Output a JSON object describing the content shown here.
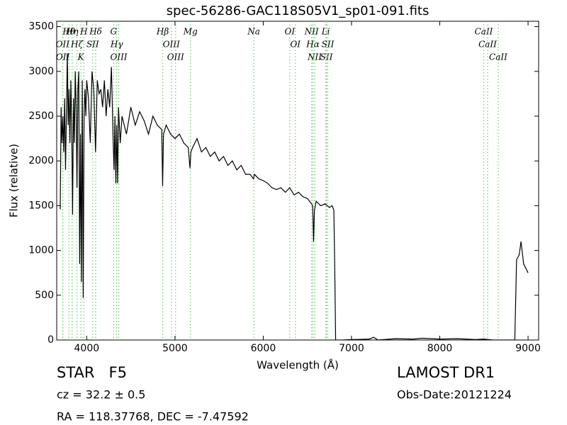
{
  "chart_data": {
    "type": "line",
    "title": "spec-56286-GAC118S05V1_sp01-091.fits",
    "x_label": "Wavelength (Å)",
    "y_label": "Flux (relative)",
    "color": "#000000",
    "line_color": "#66cc66",
    "xlim": [
      3660,
      9120
    ],
    "ylim": [
      0,
      3560
    ],
    "xticks": [
      4000,
      5000,
      6000,
      7000,
      8000,
      9000
    ],
    "yticks": [
      0,
      500,
      1000,
      1500,
      2000,
      2500,
      3000,
      3500
    ],
    "x": [
      3700,
      3710,
      3720,
      3730,
      3740,
      3750,
      3760,
      3770,
      3780,
      3790,
      3800,
      3810,
      3820,
      3830,
      3840,
      3850,
      3860,
      3870,
      3880,
      3890,
      3900,
      3910,
      3920,
      3930,
      3940,
      3950,
      3960,
      3970,
      3980,
      3990,
      4000,
      4020,
      4040,
      4060,
      4080,
      4100,
      4120,
      4140,
      4160,
      4180,
      4200,
      4220,
      4240,
      4260,
      4280,
      4300,
      4310,
      4320,
      4330,
      4340,
      4350,
      4360,
      4380,
      4400,
      4450,
      4500,
      4550,
      4600,
      4650,
      4700,
      4750,
      4800,
      4850,
      4860,
      4870,
      4900,
      4950,
      5000,
      5050,
      5100,
      5150,
      5170,
      5180,
      5200,
      5250,
      5300,
      5350,
      5400,
      5450,
      5500,
      5550,
      5600,
      5650,
      5700,
      5750,
      5800,
      5850,
      5890,
      5900,
      5950,
      6000,
      6050,
      6100,
      6150,
      6200,
      6250,
      6300,
      6350,
      6400,
      6450,
      6500,
      6540,
      6560,
      6570,
      6580,
      6600,
      6650,
      6700,
      6750,
      6780,
      6800,
      6810,
      6820,
      6900,
      7000,
      7200,
      7250,
      7300,
      7500,
      7700,
      7800,
      8000,
      8200,
      8400,
      8500,
      8600,
      8800,
      8850,
      8870,
      8900,
      8920,
      8950,
      9000
    ],
    "values": [
      1460,
      2600,
      2200,
      2500,
      2100,
      2700,
      1900,
      2500,
      3200,
      2400,
      2800,
      2200,
      2900,
      2400,
      1400,
      2700,
      2200,
      3000,
      2600,
      1700,
      2800,
      3000,
      850,
      2300,
      650,
      2900,
      470,
      2500,
      2800,
      2500,
      2900,
      2700,
      2200,
      3000,
      2800,
      2100,
      2900,
      2750,
      2800,
      2600,
      2900,
      2500,
      2800,
      2600,
      3050,
      2200,
      1900,
      2500,
      1750,
      2400,
      1750,
      2600,
      2200,
      2500,
      2300,
      2600,
      2400,
      2550,
      2450,
      2300,
      2500,
      2400,
      2350,
      1720,
      2300,
      2400,
      2300,
      2250,
      2300,
      2200,
      2150,
      1920,
      2100,
      2150,
      2250,
      2100,
      2150,
      2050,
      2100,
      2000,
      2050,
      1950,
      2000,
      1900,
      1950,
      1850,
      1850,
      1800,
      1850,
      1800,
      1780,
      1750,
      1700,
      1680,
      1700,
      1650,
      1700,
      1620,
      1650,
      1600,
      1580,
      1530,
      1500,
      1100,
      1450,
      1550,
      1500,
      1520,
      1480,
      1500,
      1450,
      800,
      0,
      0,
      5,
      10,
      30,
      0,
      15,
      10,
      20,
      10,
      15,
      5,
      10,
      0,
      0,
      0,
      900,
      950,
      1100,
      850,
      750
    ],
    "lines": [
      {
        "label": "Hθ",
        "wavelength": 3798
      },
      {
        "label": "OII",
        "wavelength": 3727
      },
      {
        "label": "OII",
        "wavelength": 3729
      },
      {
        "label": "Hη",
        "wavelength": 3835
      },
      {
        "label": "Hζ",
        "wavelength": 3889
      },
      {
        "label": "K",
        "wavelength": 3934
      },
      {
        "label": "H",
        "wavelength": 3968
      },
      {
        "label": "SII",
        "wavelength": 4068
      },
      {
        "label": "Hδ",
        "wavelength": 4102
      },
      {
        "label": "G",
        "wavelength": 4305
      },
      {
        "label": "Hγ",
        "wavelength": 4340
      },
      {
        "label": "OIII",
        "wavelength": 4363
      },
      {
        "label": "Hβ",
        "wavelength": 4861
      },
      {
        "label": "OIII",
        "wavelength": 4959
      },
      {
        "label": "OIII",
        "wavelength": 5007
      },
      {
        "label": "Mg",
        "wavelength": 5175
      },
      {
        "label": "Na",
        "wavelength": 5893
      },
      {
        "label": "OI",
        "wavelength": 6300
      },
      {
        "label": "OI",
        "wavelength": 6364
      },
      {
        "label": "NII",
        "wavelength": 6548
      },
      {
        "label": "Hα",
        "wavelength": 6563
      },
      {
        "label": "NII",
        "wavelength": 6583
      },
      {
        "label": "Li",
        "wavelength": 6708
      },
      {
        "label": "SII",
        "wavelength": 6716
      },
      {
        "label": "SII",
        "wavelength": 6731
      },
      {
        "label": "CaII",
        "wavelength": 8498
      },
      {
        "label": "CaII",
        "wavelength": 8542
      },
      {
        "label": "CaII",
        "wavelength": 8662
      }
    ]
  },
  "info": {
    "object": "STAR   F5",
    "redshift": "cz = 32.2 ± 0.5",
    "coords": "RA = 118.37768, DEC = -7.47592",
    "survey": "LAMOST DR1",
    "date": "Obs-Date:20121224"
  }
}
